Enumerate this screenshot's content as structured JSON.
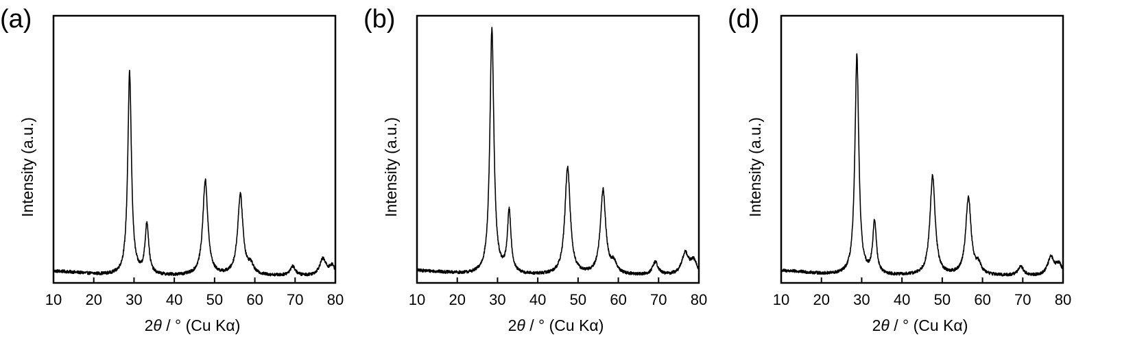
{
  "chart_data": [
    {
      "type": "line",
      "panel_label": "(a)",
      "xlabel": {
        "prefix": "2",
        "theta": "θ",
        "suffix": " / ° (Cu Kα)"
      },
      "ylabel": "Intensity (a.u.)",
      "xlim": [
        10,
        80
      ],
      "xticks": [
        10,
        20,
        30,
        40,
        50,
        60,
        70,
        80
      ],
      "ylim": [
        0,
        100
      ],
      "yticks": [],
      "baseline": {
        "start": 4.7,
        "end": 2.4,
        "decay_center": 17,
        "decay_width": 4,
        "floor": 2.6
      },
      "peaks": [
        {
          "x": 28.9,
          "height": 75.5,
          "width": 0.55
        },
        {
          "x": 33.2,
          "height": 19,
          "width": 0.55
        },
        {
          "x": 47.7,
          "height": 35.5,
          "width": 0.75
        },
        {
          "x": 56.4,
          "height": 30,
          "width": 0.8
        },
        {
          "x": 59.0,
          "height": 3.2,
          "width": 0.8
        },
        {
          "x": 69.4,
          "height": 3.5,
          "width": 0.8
        },
        {
          "x": 76.9,
          "height": 6.2,
          "width": 1.0
        },
        {
          "x": 79.2,
          "height": 3.5,
          "width": 0.9
        }
      ]
    },
    {
      "type": "line",
      "panel_label": "(b)",
      "xlabel": {
        "prefix": "2",
        "theta": "θ",
        "suffix": " / ° (Cu Kα)"
      },
      "ylabel": "Intensity (a.u.)",
      "xlim": [
        10,
        80
      ],
      "xticks": [
        10,
        20,
        30,
        40,
        50,
        60,
        70,
        80
      ],
      "ylim": [
        0,
        100
      ],
      "yticks": [],
      "baseline": {
        "start": 4.9,
        "end": 2.7,
        "decay_center": 17,
        "decay_width": 4,
        "floor": 2.8
      },
      "peaks": [
        {
          "x": 28.6,
          "height": 91.5,
          "width": 0.6
        },
        {
          "x": 32.9,
          "height": 23,
          "width": 0.55
        },
        {
          "x": 47.4,
          "height": 40,
          "width": 0.8
        },
        {
          "x": 56.2,
          "height": 31.5,
          "width": 0.8
        },
        {
          "x": 58.9,
          "height": 3.8,
          "width": 0.8
        },
        {
          "x": 69.2,
          "height": 4.8,
          "width": 0.8
        },
        {
          "x": 76.6,
          "height": 8,
          "width": 1.0
        },
        {
          "x": 78.7,
          "height": 5,
          "width": 1.0
        }
      ]
    },
    {
      "type": "line",
      "panel_label": "(d)",
      "xlabel": {
        "prefix": "2",
        "theta": "θ",
        "suffix": " / ° (Cu Kα)"
      },
      "ylabel": "Intensity (a.u.)",
      "xlim": [
        10,
        80
      ],
      "xticks": [
        10,
        20,
        30,
        40,
        50,
        60,
        70,
        80
      ],
      "ylim": [
        0,
        100
      ],
      "yticks": [],
      "baseline": {
        "start": 4.9,
        "end": 2.4,
        "decay_center": 17,
        "decay_width": 4,
        "floor": 2.6
      },
      "peaks": [
        {
          "x": 28.8,
          "height": 82,
          "width": 0.58
        },
        {
          "x": 33.2,
          "height": 19.5,
          "width": 0.55
        },
        {
          "x": 47.6,
          "height": 37,
          "width": 0.78
        },
        {
          "x": 56.5,
          "height": 29,
          "width": 0.8
        },
        {
          "x": 59.0,
          "height": 3.4,
          "width": 0.8
        },
        {
          "x": 69.5,
          "height": 3.5,
          "width": 0.8
        },
        {
          "x": 77.0,
          "height": 6.8,
          "width": 1.0
        },
        {
          "x": 79.0,
          "height": 4,
          "width": 0.9
        }
      ]
    }
  ]
}
